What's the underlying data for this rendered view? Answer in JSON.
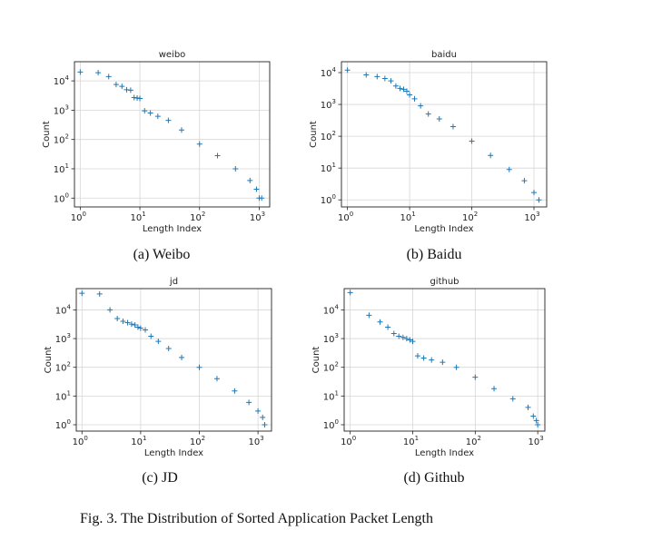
{
  "figure": {
    "caption": "Fig. 3.  The Distribution of Sorted Application Packet Length",
    "marker_color": "#1f77b4"
  },
  "chart_data": [
    {
      "type": "scatter",
      "title": "weibo",
      "caption": "(a) Weibo",
      "xlabel": "Length Index",
      "ylabel": "Count",
      "xscale": "log",
      "yscale": "log",
      "xlim": [
        0.8,
        1500
      ],
      "ylim": [
        0.5,
        45000
      ],
      "grid": true,
      "xticks": [
        1,
        10,
        100,
        1000
      ],
      "xtick_labels": [
        [
          "10",
          "0"
        ],
        [
          "10",
          "1"
        ],
        [
          "10",
          "2"
        ],
        [
          "10",
          "3"
        ]
      ],
      "yticks": [
        1,
        10,
        100,
        1000,
        10000
      ],
      "ytick_labels": [
        [
          "10",
          "0"
        ],
        [
          "10",
          "1"
        ],
        [
          "10",
          "2"
        ],
        [
          "10",
          "3"
        ],
        [
          "10",
          "4"
        ]
      ],
      "x": [
        1,
        2,
        3,
        4,
        5,
        6,
        7,
        8,
        9,
        10,
        12,
        15,
        20,
        30,
        50,
        100,
        200,
        400,
        700,
        900,
        1000,
        1100
      ],
      "y": [
        20000,
        19000,
        14000,
        7500,
        6500,
        5000,
        4800,
        2700,
        2600,
        2500,
        950,
        800,
        620,
        450,
        210,
        70,
        28,
        10,
        4,
        2,
        1,
        1
      ]
    },
    {
      "type": "scatter",
      "title": "baidu",
      "caption": "(b) Baidu",
      "xlabel": "Length Index",
      "ylabel": "Count",
      "xscale": "log",
      "yscale": "log",
      "xlim": [
        0.8,
        1600
      ],
      "ylim": [
        0.6,
        22000
      ],
      "grid": true,
      "xticks": [
        1,
        10,
        100,
        1000
      ],
      "xtick_labels": [
        [
          "10",
          "0"
        ],
        [
          "10",
          "1"
        ],
        [
          "10",
          "2"
        ],
        [
          "10",
          "3"
        ]
      ],
      "yticks": [
        1,
        10,
        100,
        1000,
        10000
      ],
      "ytick_labels": [
        [
          "10",
          "0"
        ],
        [
          "10",
          "1"
        ],
        [
          "10",
          "2"
        ],
        [
          "10",
          "3"
        ],
        [
          "10",
          "4"
        ]
      ],
      "x": [
        1,
        2,
        3,
        4,
        5,
        6,
        7,
        8,
        9,
        10,
        12,
        15,
        20,
        30,
        50,
        100,
        200,
        400,
        700,
        1000,
        1200
      ],
      "y": [
        12000,
        8500,
        7500,
        6500,
        5500,
        3800,
        3200,
        3000,
        2600,
        2000,
        1500,
        900,
        500,
        350,
        200,
        70,
        25,
        9,
        4,
        1.7,
        1
      ]
    },
    {
      "type": "scatter",
      "title": "jd",
      "caption": "(c) JD",
      "xlabel": "Length Index",
      "ylabel": "Count",
      "xscale": "log",
      "yscale": "log",
      "xlim": [
        0.8,
        1700
      ],
      "ylim": [
        0.6,
        55000
      ],
      "grid": true,
      "xticks": [
        1,
        10,
        100,
        1000
      ],
      "xtick_labels": [
        [
          "10",
          "0"
        ],
        [
          "10",
          "1"
        ],
        [
          "10",
          "2"
        ],
        [
          "10",
          "3"
        ]
      ],
      "yticks": [
        1,
        10,
        100,
        1000,
        10000
      ],
      "ytick_labels": [
        [
          "10",
          "0"
        ],
        [
          "10",
          "1"
        ],
        [
          "10",
          "2"
        ],
        [
          "10",
          "3"
        ],
        [
          "10",
          "4"
        ]
      ],
      "x": [
        1,
        2,
        3,
        4,
        5,
        6,
        7,
        8,
        9,
        10,
        12,
        15,
        20,
        30,
        50,
        100,
        200,
        400,
        700,
        1000,
        1200,
        1300
      ],
      "y": [
        38000,
        36000,
        10000,
        5000,
        4000,
        3600,
        3200,
        3000,
        2500,
        2300,
        2000,
        1200,
        800,
        450,
        220,
        100,
        40,
        15,
        6,
        3,
        1.8,
        1
      ]
    },
    {
      "type": "scatter",
      "title": "github",
      "caption": "(d) Github",
      "xlabel": "Length Index",
      "ylabel": "Count",
      "xscale": "log",
      "yscale": "log",
      "xlim": [
        0.8,
        1300
      ],
      "ylim": [
        0.6,
        55000
      ],
      "grid": true,
      "xticks": [
        1,
        10,
        100,
        1000
      ],
      "xtick_labels": [
        [
          "10",
          "0"
        ],
        [
          "10",
          "1"
        ],
        [
          "10",
          "2"
        ],
        [
          "10",
          "3"
        ]
      ],
      "yticks": [
        1,
        10,
        100,
        1000,
        10000
      ],
      "ytick_labels": [
        [
          "10",
          "0"
        ],
        [
          "10",
          "1"
        ],
        [
          "10",
          "2"
        ],
        [
          "10",
          "3"
        ],
        [
          "10",
          "4"
        ]
      ],
      "x": [
        1,
        2,
        3,
        4,
        5,
        6,
        7,
        8,
        9,
        10,
        12,
        15,
        20,
        30,
        50,
        100,
        200,
        400,
        700,
        850,
        950,
        1000
      ],
      "y": [
        40000,
        6500,
        3800,
        2500,
        1500,
        1200,
        1100,
        1000,
        900,
        800,
        250,
        210,
        180,
        150,
        100,
        45,
        18,
        8,
        4,
        2,
        1.4,
        1
      ]
    }
  ]
}
